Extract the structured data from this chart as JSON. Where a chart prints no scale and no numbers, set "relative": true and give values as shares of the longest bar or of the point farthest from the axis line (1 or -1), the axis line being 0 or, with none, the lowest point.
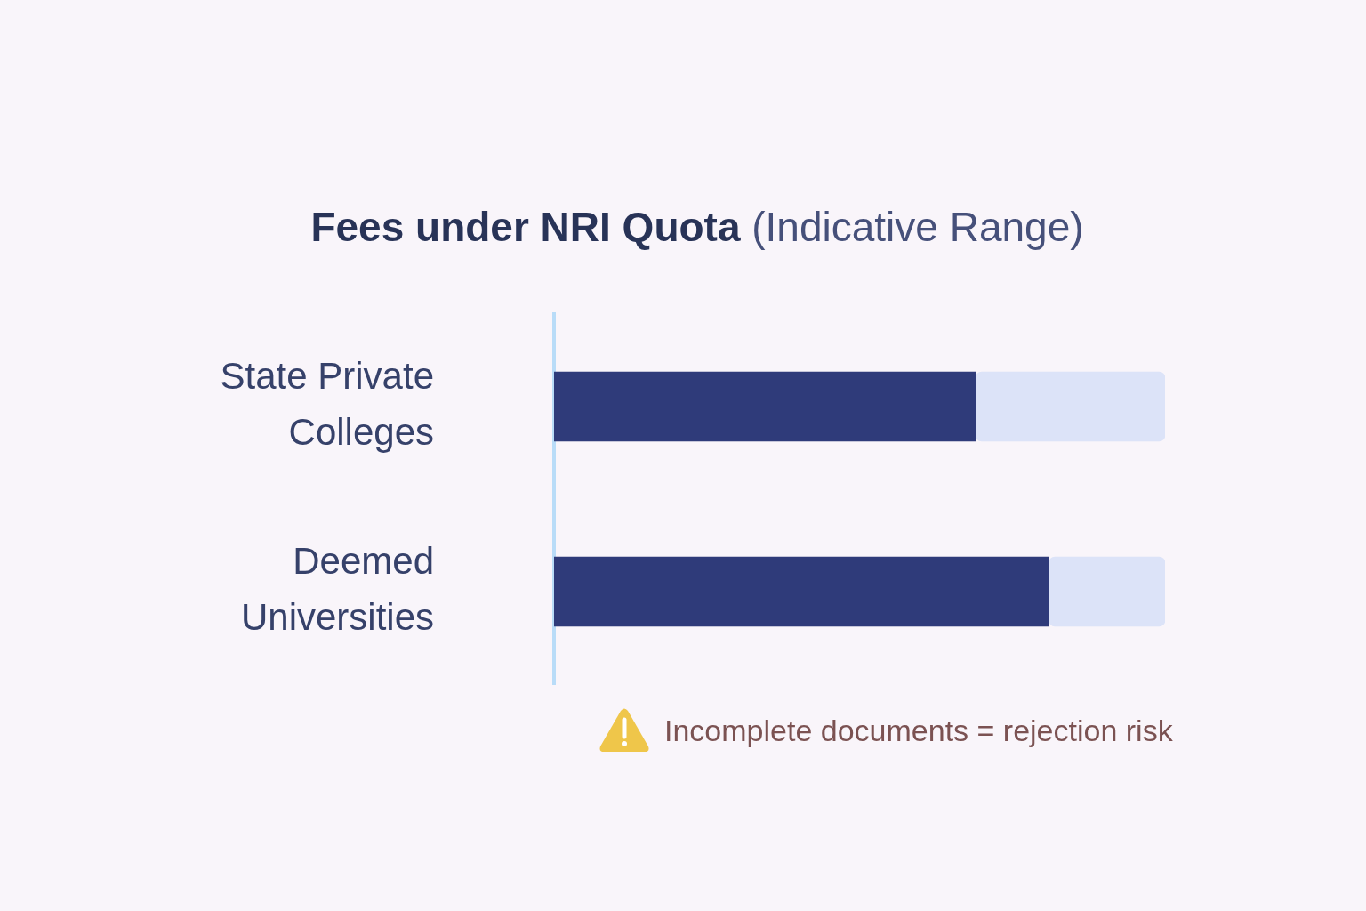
{
  "chart_data": {
    "type": "bar",
    "orientation": "horizontal",
    "stacked": true,
    "relative": true,
    "title": "Fees under NRI Quota",
    "subtitle": "(Indicative Range)",
    "categories": [
      "State Private Colleges",
      "Deemed Universities"
    ],
    "series": [
      {
        "color": "#2f3b7a",
        "values": [
          0.69,
          0.81
        ]
      },
      {
        "color": "#dce3f8",
        "values": [
          0.31,
          0.19
        ]
      }
    ],
    "annotations": [
      "Incomplete documents = rejection risk"
    ]
  }
}
